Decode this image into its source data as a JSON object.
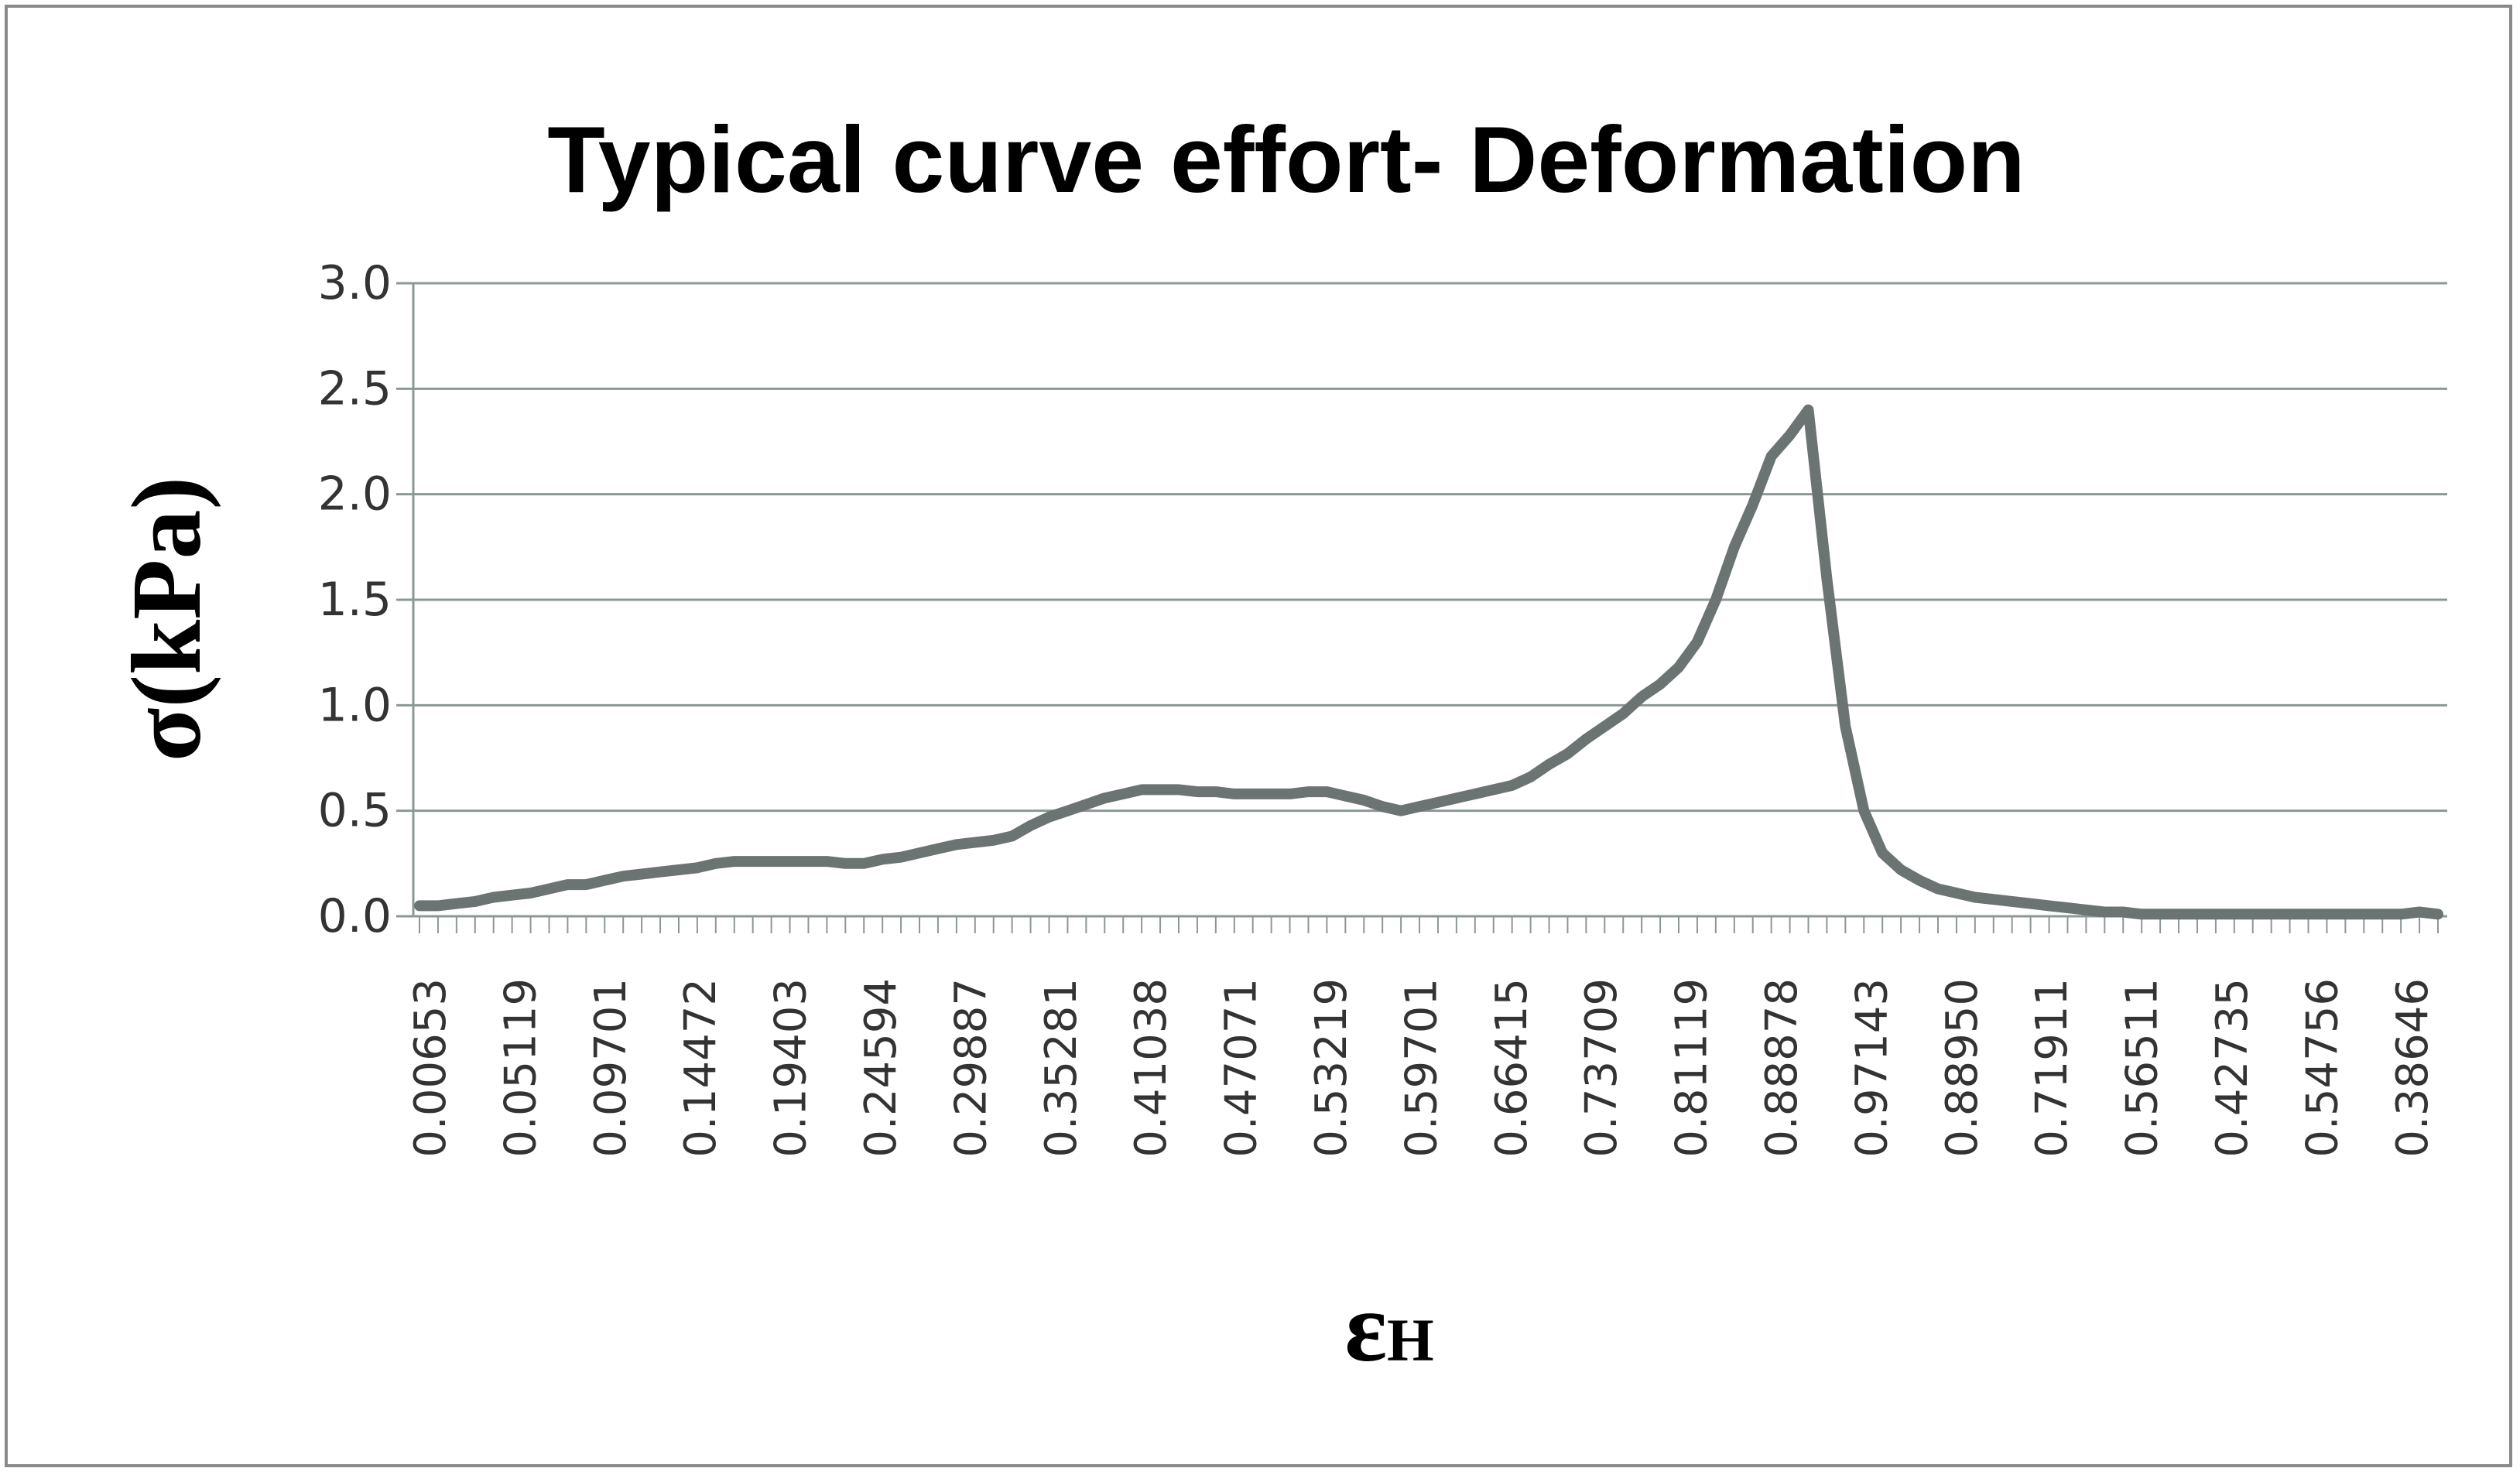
{
  "chart_data": {
    "type": "line",
    "title": "Typical curve effort- Deformation",
    "ylabel": "σ(kPa)",
    "xlabel_main": "ε",
    "xlabel_sub": "H",
    "ylim": [
      0,
      3.0
    ],
    "yticks": [
      "0.0",
      "0.5",
      "1.0",
      "1.5",
      "2.0",
      "2.5",
      "3.0"
    ],
    "ytick_values": [
      0,
      0.5,
      1.0,
      1.5,
      2.0,
      2.5,
      3.0
    ],
    "grid": "horizontal",
    "legend": "none",
    "line_color": "#6b7472",
    "grid_color": "#8c9896",
    "xtick_labels": [
      "0.00653",
      "0.05119",
      "0.09701",
      "0.14472",
      "0.19403",
      "0.24594",
      "0.29887",
      "0.35281",
      "0.41038",
      "0.47071",
      "0.53219",
      "0.59701",
      "0.66415",
      "0.73709",
      "0.81119",
      "0.88878",
      "0.97143",
      "0.88950",
      "0.71911",
      "0.56511",
      "0.42735",
      "0.54756",
      "0.38646"
    ],
    "series": [
      {
        "values": [
          0.05,
          0.05,
          0.06,
          0.07,
          0.09,
          0.1,
          0.11,
          0.13,
          0.15,
          0.15,
          0.17,
          0.19,
          0.2,
          0.21,
          0.22,
          0.23,
          0.25,
          0.26,
          0.26,
          0.26,
          0.26,
          0.26,
          0.26,
          0.25,
          0.25,
          0.27,
          0.28,
          0.3,
          0.32,
          0.34,
          0.35,
          0.36,
          0.38,
          0.43,
          0.47,
          0.5,
          0.53,
          0.56,
          0.58,
          0.6,
          0.6,
          0.6,
          0.59,
          0.59,
          0.58,
          0.58,
          0.58,
          0.58,
          0.59,
          0.59,
          0.57,
          0.55,
          0.52,
          0.5,
          0.52,
          0.54,
          0.56,
          0.58,
          0.6,
          0.62,
          0.66,
          0.72,
          0.77,
          0.84,
          0.9,
          0.96,
          1.04,
          1.1,
          1.18,
          1.3,
          1.5,
          1.75,
          1.95,
          2.18,
          2.28,
          2.4,
          1.6,
          0.9,
          0.5,
          0.3,
          0.22,
          0.17,
          0.13,
          0.11,
          0.09,
          0.08,
          0.07,
          0.06,
          0.05,
          0.04,
          0.03,
          0.02,
          0.02,
          0.01,
          0.01,
          0.01,
          0.01,
          0.01,
          0.01,
          0.01,
          0.01,
          0.01,
          0.01,
          0.01,
          0.01,
          0.01,
          0.01,
          0.01,
          0.02,
          0.01
        ]
      }
    ]
  }
}
